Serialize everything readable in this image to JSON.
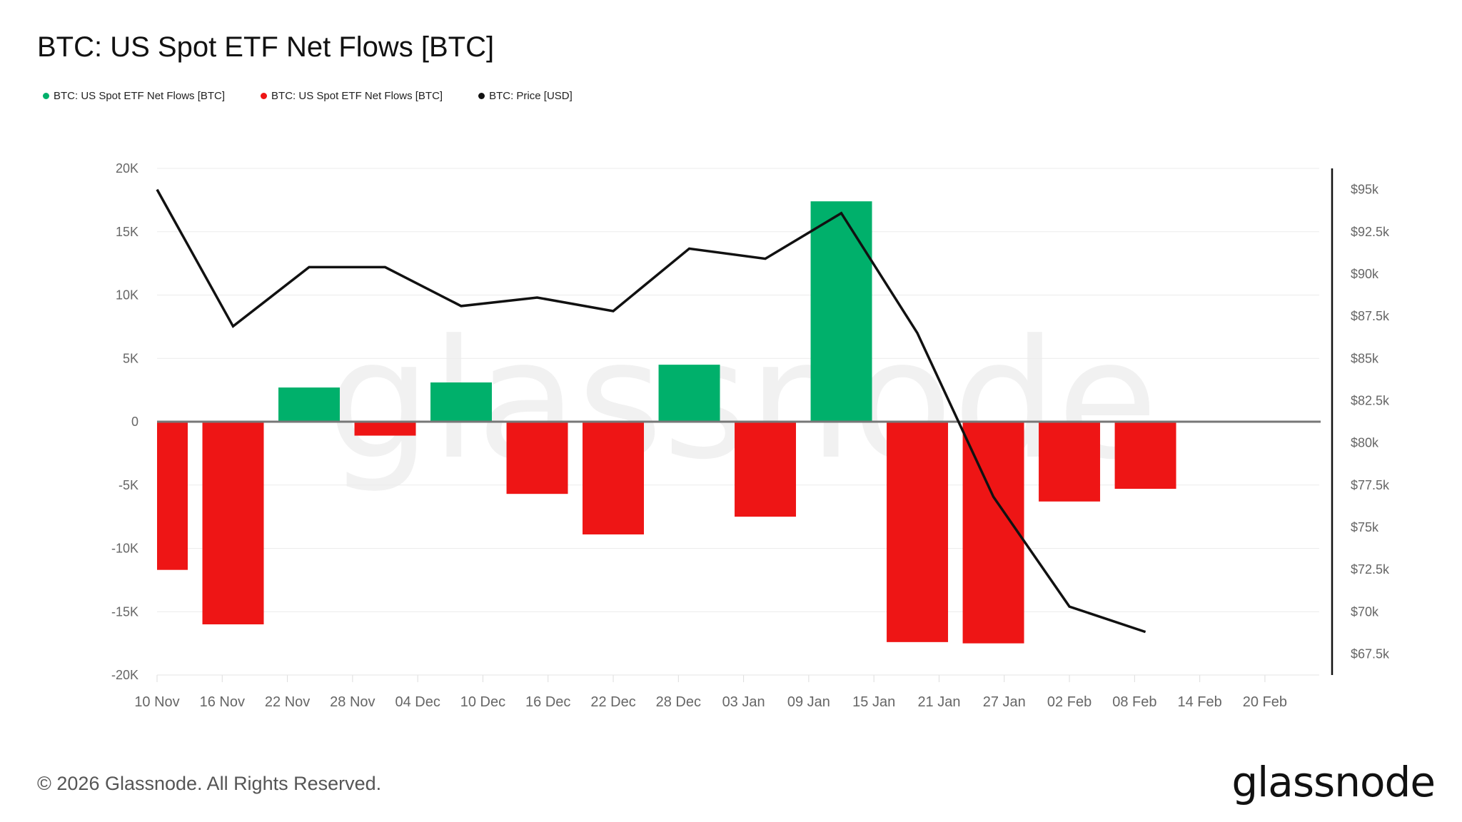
{
  "title": "BTC: US Spot ETF Net Flows [BTC]",
  "legend": [
    {
      "label": "BTC: US Spot ETF Net Flows [BTC]",
      "color": "#00b06b"
    },
    {
      "label": "BTC: US Spot ETF Net Flows [BTC]",
      "color": "#ee1515"
    },
    {
      "label": "BTC: Price [USD]",
      "color": "#111111"
    }
  ],
  "watermark": "glassnode",
  "footer": "© 2026 Glassnode. All Rights Reserved.",
  "brand": "glassnode",
  "chart_data": {
    "type": "bar",
    "title": "BTC: US Spot ETF Net Flows [BTC]",
    "xlabel": "",
    "ylabel": "",
    "x_ticks": [
      "10 Nov",
      "16 Nov",
      "22 Nov",
      "28 Nov",
      "04 Dec",
      "10 Dec",
      "16 Dec",
      "22 Dec",
      "28 Dec",
      "03 Jan",
      "09 Jan",
      "15 Jan",
      "21 Jan",
      "27 Jan",
      "02 Feb",
      "08 Feb",
      "14 Feb",
      "20 Feb"
    ],
    "x_range": [
      "2025-11-10",
      "2026-02-25"
    ],
    "y_left": {
      "ticks": [
        "20K",
        "15K",
        "10K",
        "5K",
        "0",
        "-5K",
        "-10K",
        "-15K",
        "-20K"
      ],
      "range": [
        -20000,
        20000
      ]
    },
    "y_right": {
      "ticks": [
        "$95k",
        "$92.5k",
        "$90k",
        "$87.5k",
        "$85k",
        "$82.5k",
        "$80k",
        "$77.5k",
        "$75k",
        "$72.5k",
        "$70k",
        "$67.5k"
      ],
      "range": [
        67500,
        95000
      ]
    },
    "grid": true,
    "legend_position": "top-left",
    "flows": [
      {
        "date": "2025-11-10",
        "value": -11700
      },
      {
        "date": "2025-11-17",
        "value": -16000
      },
      {
        "date": "2025-11-24",
        "value": 2700
      },
      {
        "date": "2025-12-01",
        "value": -1100
      },
      {
        "date": "2025-12-08",
        "value": 3100
      },
      {
        "date": "2025-12-15",
        "value": -5700
      },
      {
        "date": "2025-12-22",
        "value": -8900
      },
      {
        "date": "2025-12-29",
        "value": 4500
      },
      {
        "date": "2026-01-05",
        "value": -7500
      },
      {
        "date": "2026-01-12",
        "value": 17400
      },
      {
        "date": "2026-01-19",
        "value": -17400
      },
      {
        "date": "2026-01-26",
        "value": -17500
      },
      {
        "date": "2026-02-02",
        "value": -6300
      },
      {
        "date": "2026-02-09",
        "value": -5300
      }
    ],
    "price": [
      {
        "date": "2025-11-10",
        "value": 95000
      },
      {
        "date": "2025-11-17",
        "value": 86900
      },
      {
        "date": "2025-11-24",
        "value": 90400
      },
      {
        "date": "2025-12-01",
        "value": 90400
      },
      {
        "date": "2025-12-08",
        "value": 88100
      },
      {
        "date": "2025-12-15",
        "value": 88600
      },
      {
        "date": "2025-12-22",
        "value": 87800
      },
      {
        "date": "2025-12-29",
        "value": 91500
      },
      {
        "date": "2026-01-05",
        "value": 90900
      },
      {
        "date": "2026-01-12",
        "value": 93600
      },
      {
        "date": "2026-01-19",
        "value": 86500
      },
      {
        "date": "2026-01-26",
        "value": 76800
      },
      {
        "date": "2026-02-02",
        "value": 70300
      },
      {
        "date": "2026-02-09",
        "value": 68800
      }
    ],
    "colors": {
      "positive": "#00b06b",
      "negative": "#ee1515",
      "price": "#111111"
    }
  }
}
